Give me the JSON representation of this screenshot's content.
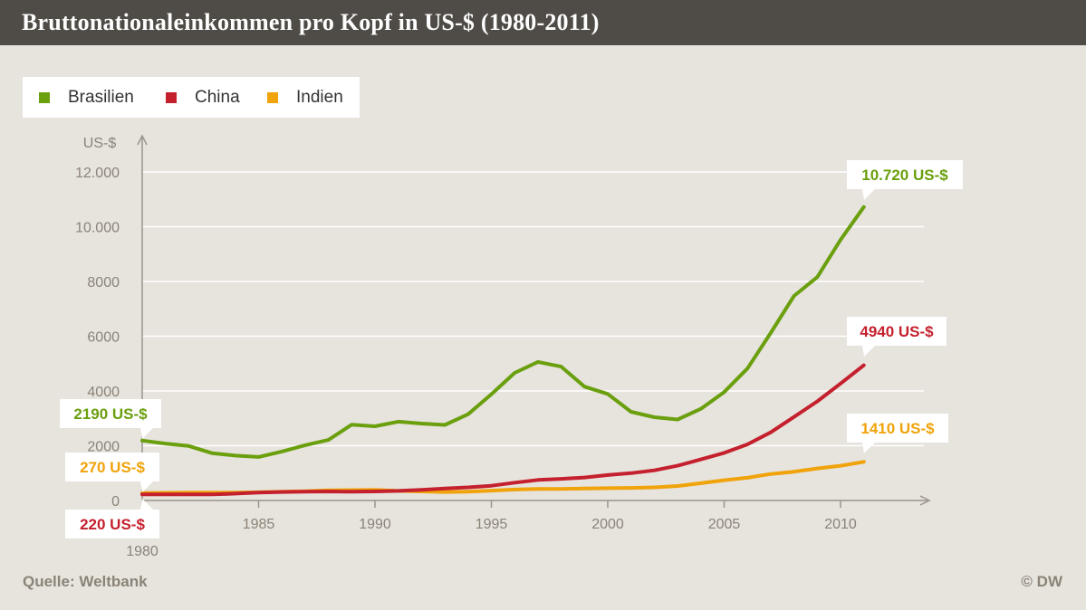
{
  "header": {
    "title": "Bruttonationaleinkommen pro Kopf in US-$ (1980-2011)"
  },
  "footer": {
    "source": "Quelle: Weltbank",
    "copyright": "© DW"
  },
  "colors": {
    "Brasilien": "#6a9f0e",
    "China": "#c4202d",
    "Indien": "#f0a30a",
    "grid": "#ffffff",
    "axis": "#9a958c",
    "tick_text": "#8a8478"
  },
  "chart_data": {
    "type": "line",
    "title": "Bruttonationaleinkommen pro Kopf in US-$ (1980-2011)",
    "xlabel": "",
    "ylabel": "US-$",
    "xlim": [
      1980,
      2013
    ],
    "ylim": [
      0,
      12500
    ],
    "x_ticks": [
      1980,
      1985,
      1990,
      1995,
      2000,
      2005,
      2010
    ],
    "x_tick_labels": [
      "1980",
      "1985",
      "1990",
      "1995",
      "2000",
      "2005",
      "2010"
    ],
    "y_ticks": [
      0,
      2000,
      4000,
      6000,
      8000,
      10000,
      12000
    ],
    "y_tick_labels": [
      "0",
      "2000",
      "4000",
      "6000",
      "8000",
      "10.000",
      "12.000"
    ],
    "grid": true,
    "legend_position": "top-left",
    "x": [
      1980,
      1981,
      1982,
      1983,
      1984,
      1985,
      1986,
      1987,
      1988,
      1989,
      1990,
      1991,
      1992,
      1993,
      1994,
      1995,
      1996,
      1997,
      1998,
      1999,
      2000,
      2001,
      2002,
      2003,
      2004,
      2005,
      2006,
      2007,
      2008,
      2009,
      2010,
      2011
    ],
    "series": [
      {
        "name": "Brasilien",
        "values": [
          2190,
          2080,
          1990,
          1730,
          1640,
          1590,
          1790,
          2020,
          2210,
          2770,
          2710,
          2880,
          2810,
          2760,
          3150,
          3880,
          4660,
          5060,
          4890,
          4160,
          3890,
          3240,
          3040,
          2960,
          3350,
          3960,
          4820,
          6120,
          7470,
          8160,
          9520,
          10720
        ]
      },
      {
        "name": "China",
        "values": [
          220,
          220,
          220,
          220,
          250,
          290,
          310,
          320,
          330,
          320,
          330,
          350,
          390,
          440,
          480,
          540,
          650,
          750,
          790,
          840,
          930,
          1000,
          1100,
          1270,
          1500,
          1740,
          2050,
          2490,
          3050,
          3620,
          4270,
          4940
        ]
      },
      {
        "name": "Indien",
        "values": [
          270,
          280,
          290,
          290,
          290,
          300,
          320,
          340,
          370,
          380,
          390,
          350,
          330,
          310,
          320,
          360,
          400,
          420,
          420,
          440,
          450,
          460,
          480,
          530,
          630,
          740,
          830,
          970,
          1050,
          1170,
          1270,
          1410
        ]
      }
    ],
    "annotations": [
      {
        "series": "Brasilien",
        "x": 1980,
        "text": "2190 US-$"
      },
      {
        "series": "Indien",
        "x": 1980,
        "text": "270 US-$"
      },
      {
        "series": "China",
        "x": 1980,
        "text": "220 US-$"
      },
      {
        "series": "Brasilien",
        "x": 2011,
        "text": "10.720 US-$"
      },
      {
        "series": "China",
        "x": 2011,
        "text": "4940 US-$"
      },
      {
        "series": "Indien",
        "x": 2011,
        "text": "1410 US-$"
      }
    ]
  }
}
